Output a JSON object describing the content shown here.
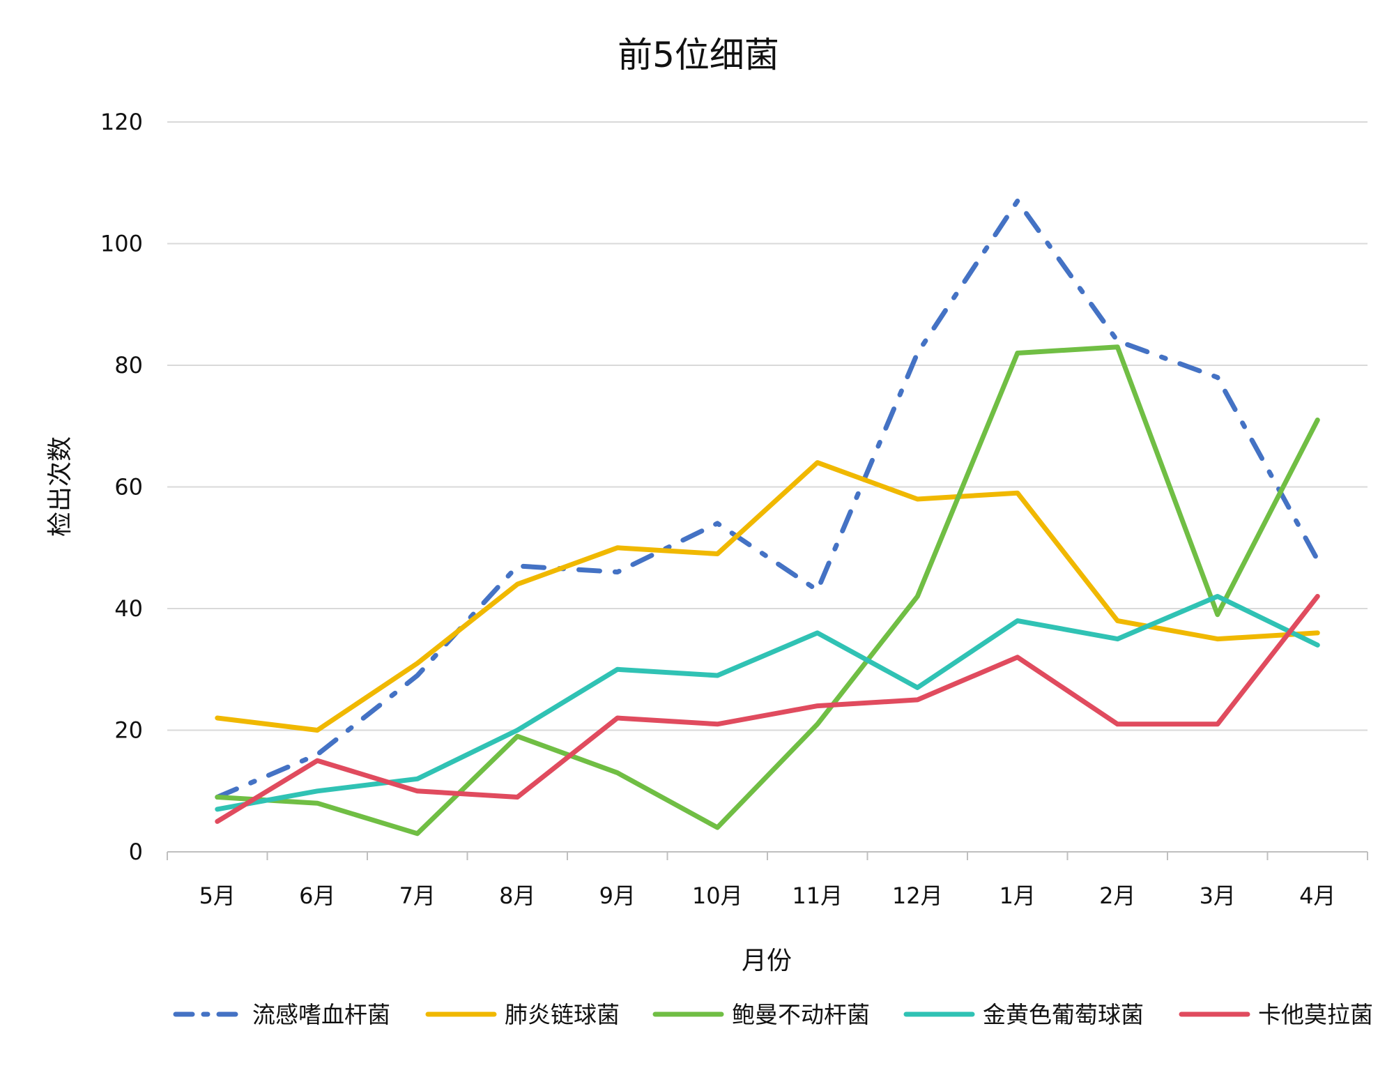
{
  "chart_data": {
    "type": "line",
    "title": "前5位细菌",
    "xlabel": "月份",
    "ylabel": "检出次数",
    "ylim": [
      0,
      120
    ],
    "yticks": [
      0,
      20,
      40,
      60,
      80,
      100,
      120
    ],
    "grid": true,
    "legend_position": "bottom",
    "categories": [
      "5月",
      "6月",
      "7月",
      "8月",
      "9月",
      "10月",
      "11月",
      "12月",
      "1月",
      "2月",
      "3月",
      "4月"
    ],
    "series": [
      {
        "name": "流感嗜血杆菌",
        "color": "#4472C4",
        "dash": "dash-dot",
        "values": [
          9,
          16,
          29,
          47,
          46,
          54,
          43,
          82,
          107,
          84,
          78,
          48
        ]
      },
      {
        "name": "肺炎链球菌",
        "color": "#F0B800",
        "dash": "solid",
        "values": [
          22,
          20,
          31,
          44,
          50,
          49,
          64,
          58,
          59,
          38,
          35,
          36
        ]
      },
      {
        "name": "鲍曼不动杆菌",
        "color": "#70BE44",
        "dash": "solid",
        "values": [
          9,
          8,
          3,
          19,
          13,
          4,
          21,
          42,
          82,
          83,
          39,
          71
        ]
      },
      {
        "name": "金黄色葡萄球菌",
        "color": "#30C2B4",
        "dash": "solid",
        "values": [
          7,
          10,
          12,
          20,
          30,
          29,
          36,
          27,
          38,
          35,
          42,
          34
        ]
      },
      {
        "name": "卡他莫拉菌",
        "color": "#E04B5E",
        "dash": "solid",
        "values": [
          5,
          15,
          10,
          9,
          22,
          21,
          24,
          25,
          32,
          21,
          21,
          42
        ]
      }
    ]
  }
}
